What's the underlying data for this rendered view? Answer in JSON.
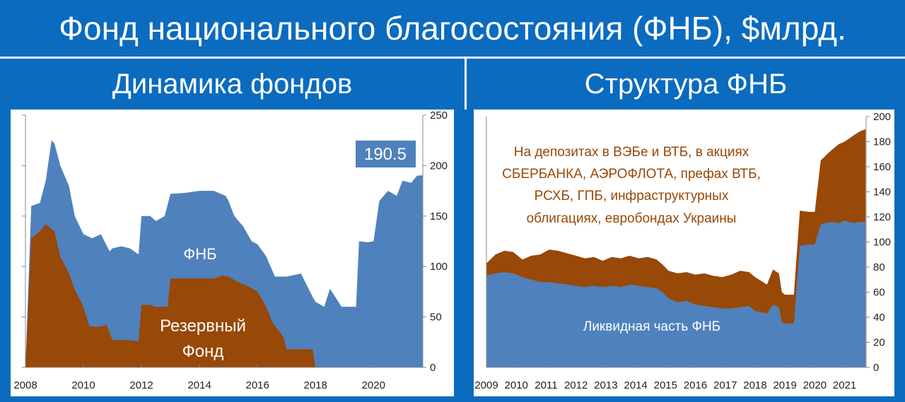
{
  "header": {
    "title": "Фонд национального благосостояния (ФНБ), $млрд."
  },
  "panels": {
    "left_title": "Динамика фондов",
    "right_title": "Структура ФНБ"
  },
  "colors": {
    "blue": "#4f81bd",
    "brown": "#984807",
    "value_badge": "#4f81bd",
    "background": "#0a6bbf"
  },
  "chart_data": [
    {
      "type": "area",
      "title": "Динамика фондов",
      "ylim": [
        0,
        250
      ],
      "yticks": [
        "0",
        "50",
        "100",
        "150",
        "200",
        "250"
      ],
      "xticks": [
        "2008",
        "2010",
        "2012",
        "2014",
        "2016",
        "2018",
        "2020"
      ],
      "series": [
        {
          "name": "ФНБ",
          "x": [
            2008.0,
            2008.2,
            2008.5,
            2008.7,
            2008.9,
            2009.0,
            2009.2,
            2009.5,
            2009.7,
            2010.0,
            2010.3,
            2010.6,
            2010.9,
            2011.0,
            2011.3,
            2011.6,
            2011.9,
            2012.0,
            2012.3,
            2012.5,
            2012.8,
            2013.0,
            2013.5,
            2014.0,
            2014.5,
            2014.9,
            2015.0,
            2015.2,
            2015.5,
            2015.8,
            2016.0,
            2016.3,
            2016.6,
            2016.9,
            2017.0,
            2017.5,
            2017.9,
            2018.0,
            2018.3,
            2018.5,
            2018.9,
            2019.0,
            2019.4,
            2019.5,
            2019.8,
            2020.0,
            2020.2,
            2020.5,
            2020.8,
            2021.0,
            2021.3,
            2021.5,
            2021.7
          ],
          "values": [
            0,
            160,
            163,
            185,
            225,
            222,
            200,
            180,
            150,
            132,
            128,
            132,
            115,
            118,
            120,
            118,
            112,
            150,
            150,
            145,
            150,
            172,
            173,
            175,
            175,
            170,
            165,
            150,
            140,
            125,
            122,
            110,
            90,
            90,
            90,
            93,
            70,
            65,
            60,
            78,
            60,
            60,
            60,
            125,
            124,
            125,
            165,
            175,
            170,
            185,
            183,
            190,
            190.5
          ]
        },
        {
          "name": "Резервный Фонд",
          "x": [
            2008.0,
            2008.2,
            2008.5,
            2008.7,
            2009.0,
            2009.2,
            2009.5,
            2009.7,
            2010.0,
            2010.2,
            2010.5,
            2010.8,
            2011.0,
            2011.5,
            2011.9,
            2012.0,
            2012.3,
            2012.5,
            2012.9,
            2013.0,
            2013.5,
            2014.0,
            2014.5,
            2014.8,
            2015.0,
            2015.3,
            2015.7,
            2016.0,
            2016.3,
            2016.5,
            2016.9,
            2017.0,
            2017.5,
            2017.9,
            2018.0
          ],
          "values": [
            0,
            128,
            135,
            142,
            135,
            110,
            93,
            77,
            60,
            41,
            40,
            42,
            27,
            27,
            26,
            62,
            62,
            60,
            60,
            88,
            88,
            88,
            88,
            91,
            90,
            85,
            80,
            75,
            60,
            45,
            30,
            18,
            18,
            18,
            0
          ]
        }
      ],
      "annotations": [
        "190.5",
        "ФНБ",
        "Резервный",
        "Фонд"
      ]
    },
    {
      "type": "area",
      "title": "Структура ФНБ",
      "ylim": [
        0,
        200
      ],
      "yticks": [
        "0",
        "20",
        "40",
        "60",
        "80",
        "100",
        "120",
        "140",
        "160",
        "180",
        "200"
      ],
      "xticks": [
        "2009",
        "2010",
        "2011",
        "2012",
        "2013",
        "2014",
        "2015",
        "2016",
        "2017",
        "2018",
        "2019",
        "2020",
        "2021"
      ],
      "series": [
        {
          "name": "ФНБ",
          "x": [
            2009.0,
            2009.3,
            2009.6,
            2009.9,
            2010.2,
            2010.5,
            2010.8,
            2011.1,
            2011.4,
            2011.7,
            2012.0,
            2012.3,
            2012.6,
            2012.9,
            2013.2,
            2013.5,
            2013.8,
            2014.1,
            2014.4,
            2014.7,
            2014.9,
            2015.1,
            2015.4,
            2015.7,
            2016.0,
            2016.3,
            2016.6,
            2016.9,
            2017.2,
            2017.5,
            2017.8,
            2018.0,
            2018.2,
            2018.4,
            2018.6,
            2018.8,
            2018.9,
            2019.0,
            2019.3,
            2019.5,
            2019.8,
            2020.0,
            2020.2,
            2020.5,
            2020.8,
            2021.0,
            2021.3,
            2021.5,
            2021.7
          ],
          "values": [
            83,
            90,
            93,
            92,
            86,
            89,
            90,
            94,
            93,
            91,
            89,
            87,
            88,
            85,
            88,
            87,
            89,
            87,
            88,
            86,
            82,
            77,
            75,
            76,
            74,
            75,
            73,
            72,
            74,
            77,
            76,
            72,
            69,
            66,
            78,
            75,
            60,
            58,
            58,
            125,
            124,
            124,
            165,
            172,
            178,
            180,
            185,
            188,
            190
          ]
        },
        {
          "name": "Ликвидная часть ФНБ",
          "x": [
            2009.0,
            2009.3,
            2009.6,
            2009.9,
            2010.2,
            2010.5,
            2010.8,
            2011.1,
            2011.4,
            2011.7,
            2012.0,
            2012.3,
            2012.6,
            2012.9,
            2013.2,
            2013.5,
            2013.8,
            2014.1,
            2014.4,
            2014.7,
            2014.9,
            2015.1,
            2015.4,
            2015.7,
            2016.0,
            2016.3,
            2016.6,
            2016.9,
            2017.2,
            2017.5,
            2017.8,
            2018.0,
            2018.2,
            2018.4,
            2018.6,
            2018.8,
            2018.9,
            2019.0,
            2019.3,
            2019.5,
            2019.8,
            2020.0,
            2020.2,
            2020.5,
            2020.8,
            2021.0,
            2021.3,
            2021.5,
            2021.7
          ],
          "values": [
            73,
            75,
            76,
            75,
            72,
            70,
            68,
            68,
            67,
            66,
            65,
            64,
            65,
            64,
            65,
            64,
            66,
            65,
            64,
            63,
            60,
            55,
            52,
            53,
            50,
            49,
            48,
            47,
            47,
            48,
            49,
            45,
            44,
            43,
            50,
            48,
            36,
            35,
            35,
            97,
            98,
            98,
            114,
            116,
            115,
            117,
            115,
            116,
            116
          ]
        }
      ],
      "annotations": [
        "На депозитах в ВЭБе и ВТБ, в акциях",
        "СБЕРБАНКА, АЭРОФЛОТА, префах ВТБ,",
        "РСХБ, ГПБ, инфраструктурных",
        "облигациях, евробондах Украины",
        "Ликвидная часть ФНБ"
      ]
    }
  ]
}
